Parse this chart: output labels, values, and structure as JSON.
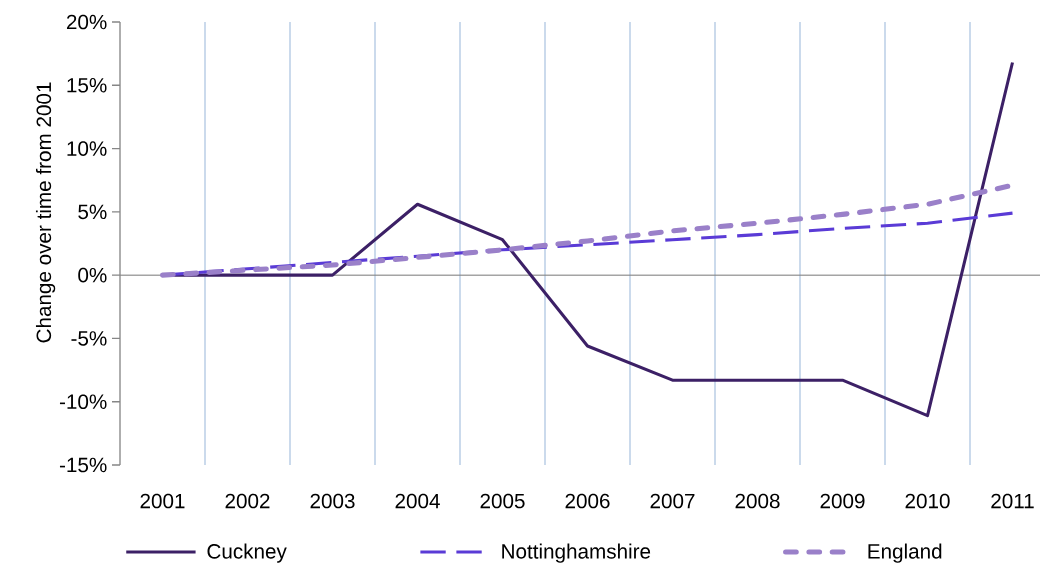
{
  "chart_data": {
    "type": "line",
    "ylabel": "Change over time from 2001",
    "categories": [
      "2001",
      "2002",
      "2003",
      "2004",
      "2005",
      "2006",
      "2007",
      "2008",
      "2009",
      "2010",
      "2011"
    ],
    "series": [
      {
        "name": "Cuckney",
        "color": "#3c2066",
        "line_style": "solid",
        "values": [
          0,
          0,
          0,
          5.6,
          2.8,
          -5.6,
          -8.3,
          -8.3,
          -8.3,
          -11.1,
          16.8
        ]
      },
      {
        "name": "Nottinghamshire",
        "color": "#5a3bd6",
        "line_style": "dashed",
        "values": [
          0,
          0.5,
          1.0,
          1.5,
          2.0,
          2.4,
          2.8,
          3.2,
          3.7,
          4.1,
          4.9
        ]
      },
      {
        "name": "England",
        "color": "#9a80c9",
        "line_style": "dashed",
        "values": [
          0,
          0.4,
          0.8,
          1.4,
          2.0,
          2.7,
          3.5,
          4.1,
          4.8,
          5.6,
          7.1
        ]
      }
    ],
    "ylim": [
      -15,
      20
    ],
    "yticks": [
      {
        "value": -15,
        "label": "-15%"
      },
      {
        "value": -10,
        "label": "-10%"
      },
      {
        "value": -5,
        "label": "-5%"
      },
      {
        "value": 0,
        "label": "0%"
      },
      {
        "value": 5,
        "label": "5%"
      },
      {
        "value": 10,
        "label": "10%"
      },
      {
        "value": 15,
        "label": "15%"
      },
      {
        "value": 20,
        "label": "20%"
      }
    ],
    "grid": "x",
    "legend": "bottom"
  }
}
